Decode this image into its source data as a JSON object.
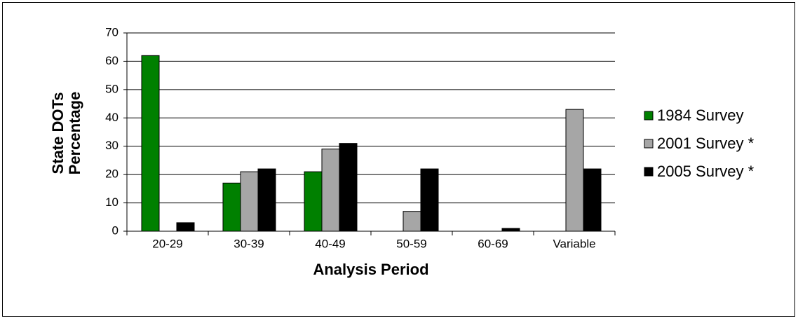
{
  "chart_data": {
    "type": "bar",
    "xlabel": "Analysis Period",
    "ylabel": [
      "State DOTs",
      "Percentage"
    ],
    "categories": [
      "20-29",
      "30-39",
      "40-49",
      "50-59",
      "60-69",
      "Variable"
    ],
    "series": [
      {
        "name": "1984 Survey",
        "color": "#008000",
        "values": [
          62,
          17,
          21,
          0,
          0,
          0
        ]
      },
      {
        "name": "2001 Survey *",
        "color": "#a6a6a6",
        "values": [
          0,
          21,
          29,
          7,
          0,
          43
        ]
      },
      {
        "name": "2005 Survey *",
        "color": "#000000",
        "values": [
          3,
          22,
          31,
          22,
          1,
          22
        ]
      }
    ],
    "ylim": [
      0,
      70
    ],
    "yticks": [
      0,
      10,
      20,
      30,
      40,
      50,
      60,
      70
    ],
    "grid": true,
    "legend": "right"
  }
}
